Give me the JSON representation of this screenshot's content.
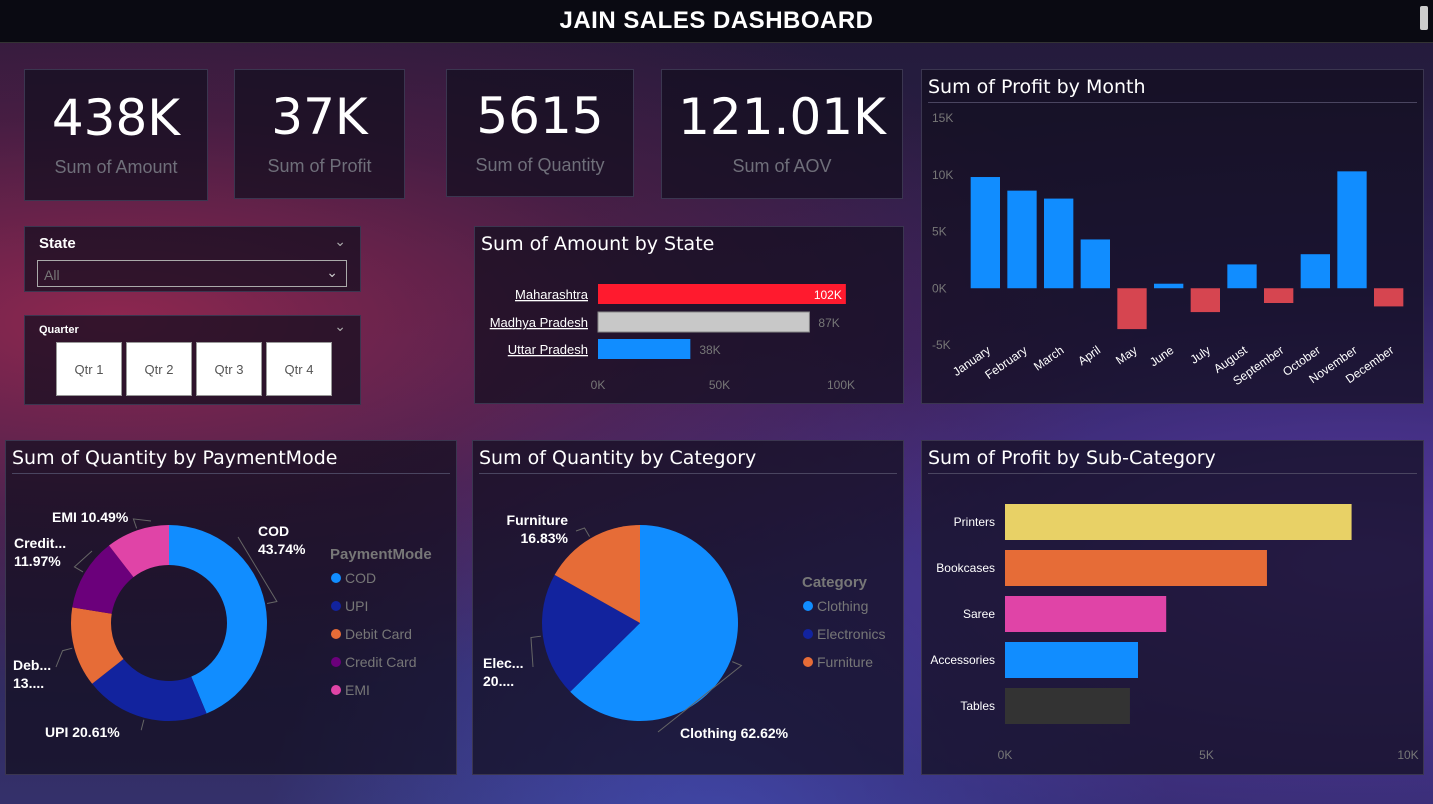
{
  "header": {
    "title": "JAIN SALES DASHBOARD"
  },
  "kpis": [
    {
      "value": "438K",
      "label": "Sum of Amount"
    },
    {
      "value": "37K",
      "label": "Sum of Profit"
    },
    {
      "value": "5615",
      "label": "Sum of Quantity"
    },
    {
      "value": "121.01K",
      "label": "Sum of AOV"
    }
  ],
  "state_slicer": {
    "title": "State",
    "selected": "All"
  },
  "quarter_slicer": {
    "title": "Quarter",
    "options": [
      "Qtr 1",
      "Qtr 2",
      "Qtr 3",
      "Qtr 4"
    ]
  },
  "chart_data": [
    {
      "type": "bar",
      "orientation": "horizontal",
      "title": "Sum of Amount by State",
      "categories": [
        "Maharashtra",
        "Madhya Pradesh",
        "Uttar Pradesh"
      ],
      "values": [
        102,
        87,
        38
      ],
      "value_labels": [
        "102K",
        "87K",
        "38K"
      ],
      "colors": [
        "#ff1a2e",
        "#c8c8c8",
        "#118dff"
      ],
      "x_ticks": [
        "0K",
        "50K",
        "100K"
      ],
      "xlim": [
        0,
        100
      ]
    },
    {
      "type": "bar",
      "title": "Sum of Profit by Month",
      "categories": [
        "January",
        "February",
        "March",
        "April",
        "May",
        "June",
        "July",
        "August",
        "September",
        "October",
        "November",
        "December"
      ],
      "values": [
        9.8,
        8.6,
        7.9,
        4.3,
        -3.6,
        0.4,
        -2.1,
        2.1,
        -1.3,
        3.0,
        10.3,
        -1.6
      ],
      "positive_color": "#118dff",
      "negative_color": "#d64550",
      "y_ticks": [
        "15K",
        "10K",
        "5K",
        "0K",
        "-5K"
      ],
      "ylim": [
        -5,
        15
      ]
    },
    {
      "type": "pie",
      "subtype": "donut",
      "title": "Sum of Quantity by PaymentMode",
      "legend_title": "PaymentMode",
      "categories": [
        "COD",
        "UPI",
        "Debit Card",
        "Credit Card",
        "EMI"
      ],
      "values": [
        43.74,
        20.61,
        13.19,
        11.97,
        10.49
      ],
      "colors": [
        "#118dff",
        "#12239e",
        "#e66c37",
        "#6b007b",
        "#e044a7"
      ],
      "labels": [
        [
          "COD",
          "43.74%"
        ],
        [
          "UPI 20.61%"
        ],
        [
          "Deb...",
          "13...."
        ],
        [
          "Credit...",
          "11.97%"
        ],
        [
          "EMI 10.49%"
        ]
      ]
    },
    {
      "type": "pie",
      "title": "Sum of Quantity by Category",
      "legend_title": "Category",
      "categories": [
        "Clothing",
        "Electronics",
        "Furniture"
      ],
      "values": [
        62.62,
        20.55,
        16.83
      ],
      "colors": [
        "#118dff",
        "#12239e",
        "#e66c37"
      ],
      "labels": [
        [
          "Clothing 62.62%"
        ],
        [
          "Elec...",
          "20...."
        ],
        [
          "Furniture",
          "16.83%"
        ]
      ]
    },
    {
      "type": "bar",
      "orientation": "horizontal",
      "title": "Sum of Profit by Sub-Category",
      "categories": [
        "Printers",
        "Bookcases",
        "Saree",
        "Accessories",
        "Tables"
      ],
      "values": [
        8.6,
        6.5,
        4.0,
        3.3,
        3.1
      ],
      "colors": [
        "#e8d166",
        "#e66c37",
        "#e044a7",
        "#118dff",
        "#333333"
      ],
      "x_ticks": [
        "0K",
        "5K",
        "10K"
      ],
      "xlim": [
        0,
        10
      ]
    }
  ]
}
